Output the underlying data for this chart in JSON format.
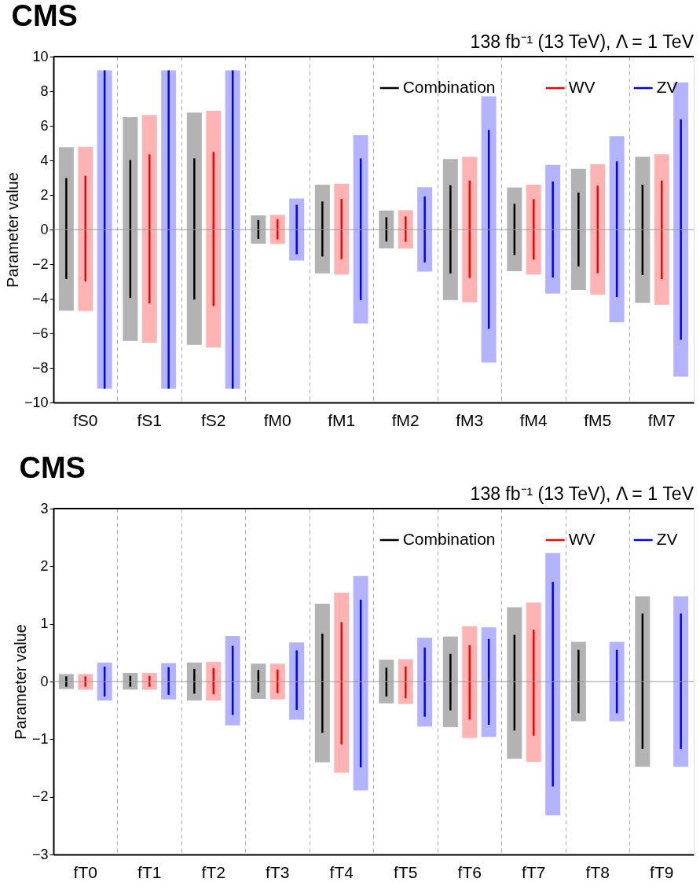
{
  "chart_data": [
    {
      "type": "bar",
      "title": "CMS",
      "subtitle": "138 fb⁻¹ (13 TeV), Λ = 1 TeV",
      "ylabel": "Parameter value",
      "categories": [
        "fS0",
        "fS1",
        "fS2",
        "fM0",
        "fM1",
        "fM2",
        "fM3",
        "fM4",
        "fM5",
        "fM7"
      ],
      "ylim": [
        -10,
        10
      ],
      "yticks": [
        -10,
        -8,
        -6,
        -4,
        -2,
        0,
        2,
        4,
        6,
        8,
        10
      ],
      "grid": "x",
      "legend": "top",
      "ref_lines": [
        {
          "axis": "y",
          "value": 0,
          "color": "#999999"
        }
      ],
      "series": [
        {
          "type": "bar",
          "color": "#b3b3b3",
          "base": [
            -4.69,
            -6.44,
            -6.67,
            -0.82,
            -2.53,
            -1.09,
            -4.08,
            -2.41,
            -3.5,
            -4.24
          ],
          "values": [
            9.45,
            12.94,
            13.43,
            1.64,
            5.12,
            2.19,
            8.16,
            4.84,
            7.01,
            8.45
          ]
        },
        {
          "type": "bar",
          "color": "#ffb3b3",
          "base": [
            -4.7,
            -6.55,
            -6.82,
            -0.83,
            -2.6,
            -1.1,
            -4.2,
            -2.59,
            -3.76,
            -4.35
          ],
          "values": [
            9.48,
            13.17,
            13.7,
            1.68,
            5.25,
            2.22,
            8.41,
            5.19,
            7.54,
            8.7
          ]
        },
        {
          "type": "bar",
          "color": "#b3b3ff",
          "base": [
            -9.2,
            -9.2,
            -9.2,
            -1.79,
            -5.43,
            -2.43,
            -7.69,
            -3.71,
            -5.36,
            -8.5
          ],
          "values": [
            18.4,
            18.4,
            18.4,
            3.59,
            10.89,
            4.87,
            15.4,
            7.45,
            10.76,
            17.01
          ]
        },
        {
          "type": "bar",
          "name": "Combination",
          "color": "#000000",
          "base": [
            -2.86,
            -3.96,
            -4.05,
            -0.54,
            -1.56,
            -0.7,
            -2.54,
            -1.47,
            -2.14,
            -2.63
          ],
          "values": [
            5.84,
            7.98,
            8.17,
            1.09,
            3.18,
            1.41,
            5.1,
            2.96,
            4.28,
            5.22
          ]
        },
        {
          "type": "bar",
          "name": "WV",
          "color": "#ff0000",
          "base": [
            -3.0,
            -4.27,
            -4.42,
            -0.57,
            -1.71,
            -0.71,
            -2.8,
            -1.74,
            -2.53,
            -2.86
          ],
          "values": [
            6.11,
            8.62,
            8.91,
            1.17,
            3.48,
            1.47,
            5.63,
            3.5,
            5.06,
            5.69
          ]
        },
        {
          "type": "bar",
          "name": "ZV",
          "color": "#0000ff",
          "base": [
            -9.2,
            -9.2,
            -9.2,
            -1.43,
            -4.08,
            -1.9,
            -5.74,
            -2.77,
            -3.91,
            -6.37
          ],
          "values": [
            18.4,
            18.4,
            18.4,
            2.86,
            8.2,
            3.82,
            11.5,
            5.55,
            7.85,
            12.75
          ]
        }
      ]
    },
    {
      "type": "bar",
      "title": "CMS",
      "subtitle": "138 fb⁻¹ (13 TeV), Λ = 1 TeV",
      "ylabel": "Parameter value",
      "categories": [
        "fT0",
        "fT1",
        "fT2",
        "fT3",
        "fT4",
        "fT5",
        "fT6",
        "fT7",
        "fT8",
        "fT9"
      ],
      "ylim": [
        -3,
        3
      ],
      "yticks": [
        -3,
        -2,
        -1,
        0,
        1,
        2,
        3
      ],
      "grid": "x",
      "legend": "top",
      "ref_lines": [
        {
          "axis": "y",
          "value": 0,
          "color": "#999999"
        }
      ],
      "series": [
        {
          "type": "bar",
          "color": "#b3b3b3",
          "base": [
            -0.13,
            -0.14,
            -0.33,
            -0.3,
            -1.4,
            -0.38,
            -0.79,
            -1.34,
            -0.69,
            -1.48
          ],
          "values": [
            0.26,
            0.29,
            0.66,
            0.61,
            2.75,
            0.76,
            1.57,
            2.63,
            1.38,
            2.96
          ]
        },
        {
          "type": "bar",
          "color": "#ffb3b3",
          "base": [
            -0.14,
            -0.14,
            -0.33,
            -0.31,
            -1.58,
            -0.39,
            -0.98,
            -1.39,
            null,
            null
          ],
          "values": [
            0.27,
            0.29,
            0.67,
            0.62,
            3.12,
            0.78,
            1.94,
            2.76,
            null,
            null
          ]
        },
        {
          "type": "bar",
          "color": "#b3b3ff",
          "base": [
            -0.33,
            -0.31,
            -0.76,
            -0.66,
            -1.89,
            -0.78,
            -0.96,
            -2.32,
            -0.69,
            -1.48
          ],
          "values": [
            0.66,
            0.63,
            1.55,
            1.34,
            3.72,
            1.54,
            1.9,
            4.55,
            1.38,
            2.96
          ]
        },
        {
          "type": "bar",
          "name": "Combination",
          "color": "#000000",
          "base": [
            -0.09,
            -0.09,
            -0.21,
            -0.19,
            -0.89,
            -0.26,
            -0.5,
            -0.85,
            -0.55,
            -1.17
          ],
          "values": [
            0.18,
            0.19,
            0.43,
            0.39,
            1.72,
            0.5,
            0.98,
            1.66,
            1.1,
            2.35
          ]
        },
        {
          "type": "bar",
          "name": "WV",
          "color": "#ff0000",
          "base": [
            -0.09,
            -0.09,
            -0.22,
            -0.2,
            -1.09,
            -0.29,
            -0.66,
            -0.94,
            null,
            null
          ],
          "values": [
            0.18,
            0.19,
            0.45,
            0.41,
            2.12,
            0.55,
            1.29,
            1.84,
            null,
            null
          ]
        },
        {
          "type": "bar",
          "name": "ZV",
          "color": "#0000ff",
          "base": [
            -0.26,
            -0.23,
            -0.58,
            -0.49,
            -1.49,
            -0.61,
            -0.75,
            -1.82,
            -0.55,
            -1.17
          ],
          "values": [
            0.52,
            0.48,
            1.2,
            1.03,
            2.91,
            1.2,
            1.49,
            3.55,
            1.1,
            2.35
          ]
        }
      ]
    }
  ]
}
